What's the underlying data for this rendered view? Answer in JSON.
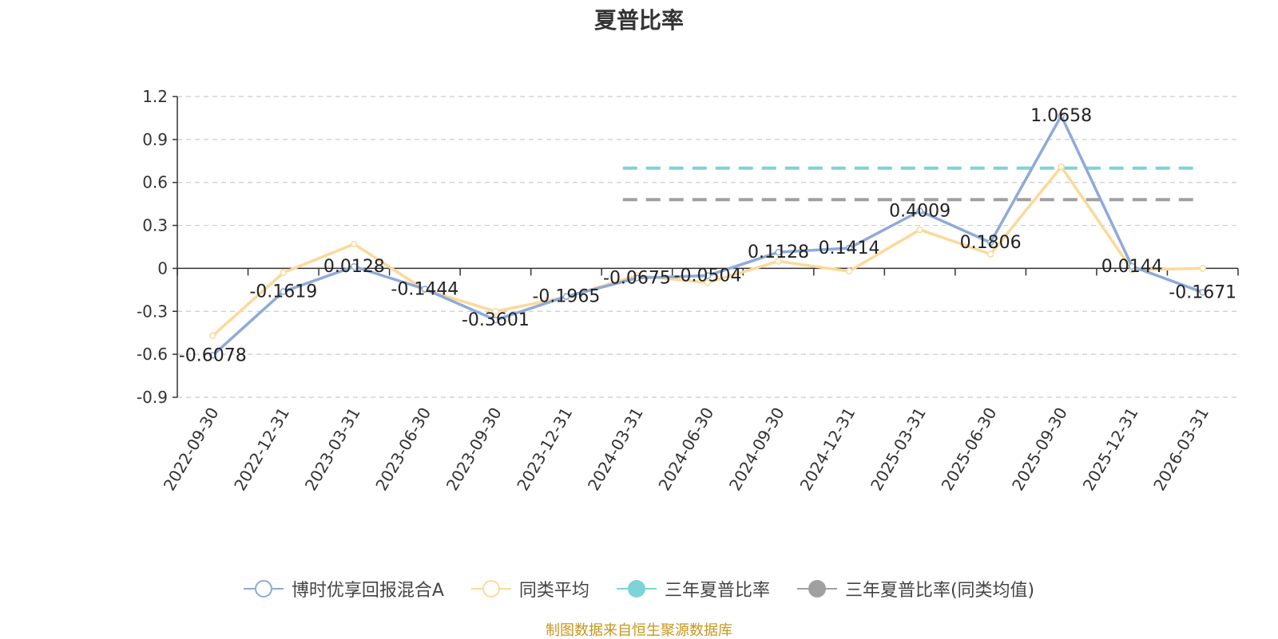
{
  "chart_data": {
    "type": "line",
    "title": "夏普比率",
    "categories": [
      "2022-09-30",
      "2022-12-31",
      "2023-03-31",
      "2023-06-30",
      "2023-09-30",
      "2023-12-31",
      "2024-03-31",
      "2024-06-30",
      "2024-09-30",
      "2024-12-31",
      "2025-03-31",
      "2025-06-30",
      "2025-09-30",
      "2025-12-31",
      "2026-03-31"
    ],
    "series": [
      {
        "name": "博时优享回报混合A",
        "color": "#8eaad8",
        "values": [
          -0.6078,
          -0.1619,
          0.0128,
          -0.1444,
          -0.3601,
          -0.1965,
          -0.0675,
          -0.0504,
          0.1128,
          0.1414,
          0.4009,
          0.1806,
          1.0658,
          0.0144,
          -0.1671
        ],
        "labels": [
          "-0.6078",
          "-0.1619",
          "0.0128",
          "-0.1444",
          "-0.3601",
          "-0.1965",
          "-0.0675",
          "-0.0504",
          "0.1128",
          "0.1414",
          "0.4009",
          "0.1806",
          "1.0658",
          "0.0144",
          "-0.1671"
        ]
      },
      {
        "name": "同类平均",
        "color": "#fcd99a",
        "values": [
          -0.47,
          -0.03,
          0.17,
          -0.15,
          -0.3,
          -0.2,
          -0.05,
          -0.1,
          0.05,
          -0.02,
          0.27,
          0.1,
          0.71,
          -0.01,
          0.0
        ]
      }
    ],
    "reference_lines": [
      {
        "name": "三年夏普比率",
        "color": "#7dd3d8",
        "value": 0.7,
        "from_index": 6.3
      },
      {
        "name": "三年夏普比率(同类均值)",
        "color": "#a0a0a0",
        "value": 0.48,
        "from_index": 6.3
      }
    ],
    "y_axis": {
      "min": -0.9,
      "max": 1.2,
      "ticks": [
        "1.2",
        "0.9",
        "0.6",
        "0.3",
        "0",
        "-0.3",
        "-0.6",
        "-0.9"
      ],
      "tick_values": [
        1.2,
        0.9,
        0.6,
        0.3,
        0,
        -0.3,
        -0.6,
        -0.9
      ]
    },
    "grid": true,
    "legend": "bottom-center"
  },
  "footer": {
    "source": "制图数据来自恒生聚源数据库"
  }
}
